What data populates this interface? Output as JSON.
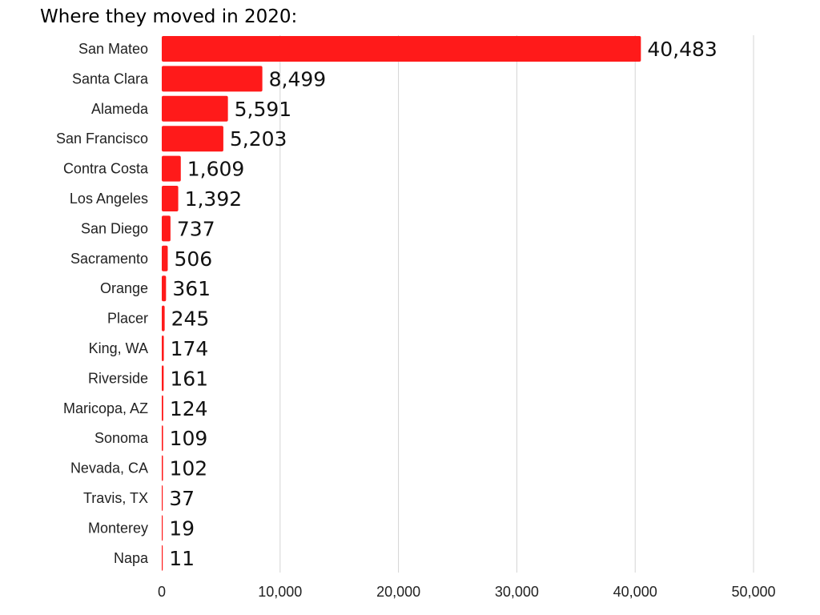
{
  "chart_data": {
    "type": "bar",
    "orientation": "horizontal",
    "title": "Where they moved in 2020:",
    "categories": [
      "San Mateo",
      "Santa Clara",
      "Alameda",
      "San Francisco",
      "Contra Costa",
      "Los Angeles",
      "San Diego",
      "Sacramento",
      "Orange",
      "Placer",
      "King, WA",
      "Riverside",
      "Maricopa, AZ",
      "Sonoma",
      "Nevada, CA",
      "Travis, TX",
      "Monterey",
      "Napa"
    ],
    "values": [
      40483,
      8499,
      5591,
      5203,
      1609,
      1392,
      737,
      506,
      361,
      245,
      174,
      161,
      124,
      109,
      102,
      37,
      19,
      11
    ],
    "value_labels": [
      "40,483",
      "8,499",
      "5,591",
      "5,203",
      "1,609",
      "1,392",
      "737",
      "506",
      "361",
      "245",
      "174",
      "161",
      "124",
      "109",
      "102",
      "37",
      "19",
      "11"
    ],
    "xlim": [
      0,
      50000
    ],
    "x_ticks": [
      0,
      10000,
      20000,
      30000,
      40000,
      50000
    ],
    "x_tick_labels": [
      "0",
      "10,000",
      "20,000",
      "30,000",
      "40,000",
      "50,000"
    ],
    "grid": "vertical",
    "legend": "none",
    "bar_color": "#ff1a1a"
  }
}
